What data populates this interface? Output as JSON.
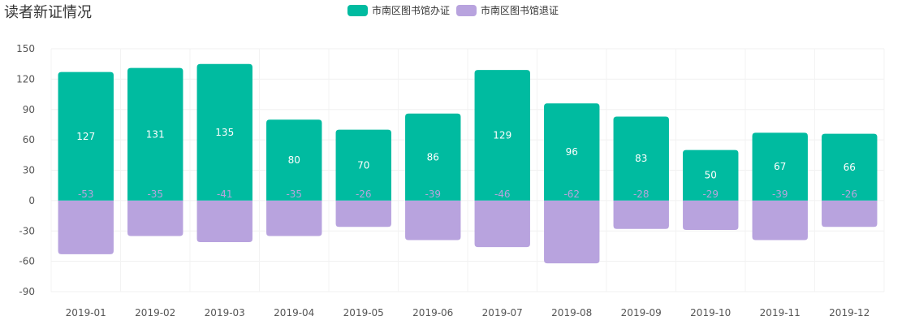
{
  "chart_data": {
    "type": "bar",
    "title": "读者新证情况",
    "categories": [
      "2019-01",
      "2019-02",
      "2019-03",
      "2019-04",
      "2019-05",
      "2019-06",
      "2019-07",
      "2019-08",
      "2019-09",
      "2019-10",
      "2019-11",
      "2019-12"
    ],
    "series": [
      {
        "name": "市南区图书馆办证",
        "color": "#00bba0",
        "values": [
          127,
          131,
          135,
          80,
          70,
          86,
          129,
          96,
          83,
          50,
          67,
          66
        ]
      },
      {
        "name": "市南区图书馆退证",
        "color": "#b8a3de",
        "values": [
          -53,
          -35,
          -41,
          -35,
          -26,
          -39,
          -46,
          -62,
          -28,
          -29,
          -39,
          -26
        ]
      }
    ],
    "yticks": [
      150,
      120,
      90,
      60,
      30,
      0,
      -30,
      -60,
      -90
    ],
    "ylim": [
      -90,
      150
    ],
    "legend": "top-center",
    "grid": true,
    "stacked": true
  }
}
